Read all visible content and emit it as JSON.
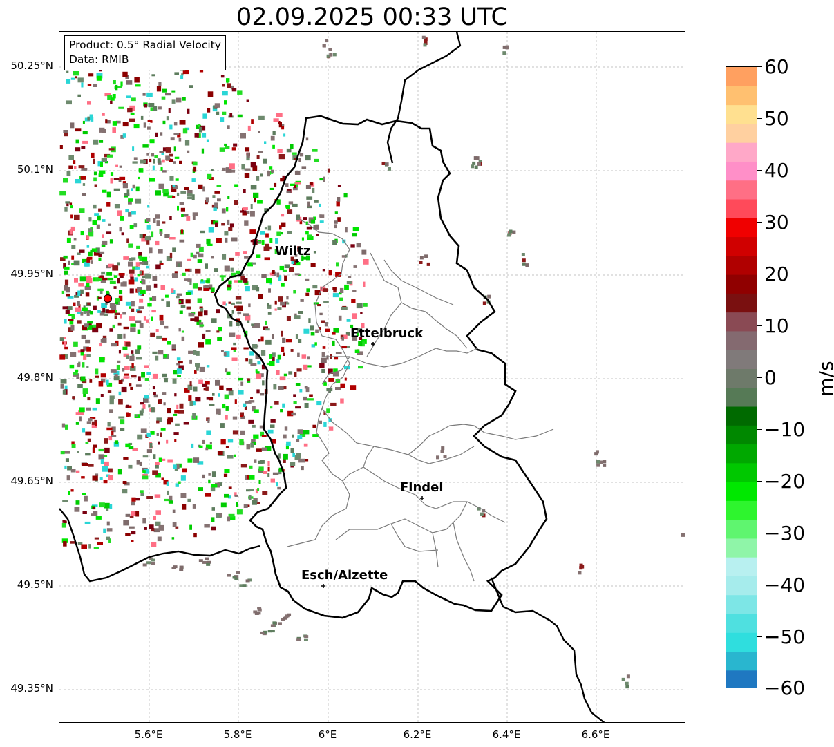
{
  "title": "02.09.2025 00:33 UTC",
  "info": {
    "product": "Product: 0.5° Radial Velocity",
    "data_source": "Data: RMIB"
  },
  "axes": {
    "lat_ticks": [
      "50.25°N",
      "50.1°N",
      "49.95°N",
      "49.8°N",
      "49.65°N",
      "49.5°N",
      "49.35°N"
    ],
    "lon_ticks": [
      "5.6°E",
      "5.8°E",
      "6°E",
      "6.2°E",
      "6.4°E",
      "6.6°E"
    ]
  },
  "cities": [
    {
      "name": "Wiltz"
    },
    {
      "name": "Ettelbruck"
    },
    {
      "name": "Findel"
    },
    {
      "name": "Esch/Alzette"
    }
  ],
  "radar_site_color": "#ff0000",
  "colorbar": {
    "unit": "m/s",
    "ticks": [
      "60",
      "50",
      "40",
      "30",
      "20",
      "10",
      "0",
      "−10",
      "−20",
      "−30",
      "−40",
      "−50",
      "−60"
    ],
    "colors": [
      "#1f78c1",
      "#29b6cf",
      "#2fdede",
      "#4fe0e0",
      "#7de6e6",
      "#a6ecec",
      "#b8f0f0",
      "#8ff5a8",
      "#5ff56f",
      "#2ef52e",
      "#00e800",
      "#00c800",
      "#00a800",
      "#008800",
      "#006a00",
      "#567a56",
      "#6e7a6a",
      "#807a7a",
      "#846a70",
      "#8a4a54",
      "#7a1010",
      "#900000",
      "#b00000",
      "#d00000",
      "#f00000",
      "#ff4a5a",
      "#ff6f85",
      "#ff8fc8",
      "#ffa8c8",
      "#ffd0a0",
      "#ffe090",
      "#ffc070",
      "#ffa060"
    ]
  }
}
